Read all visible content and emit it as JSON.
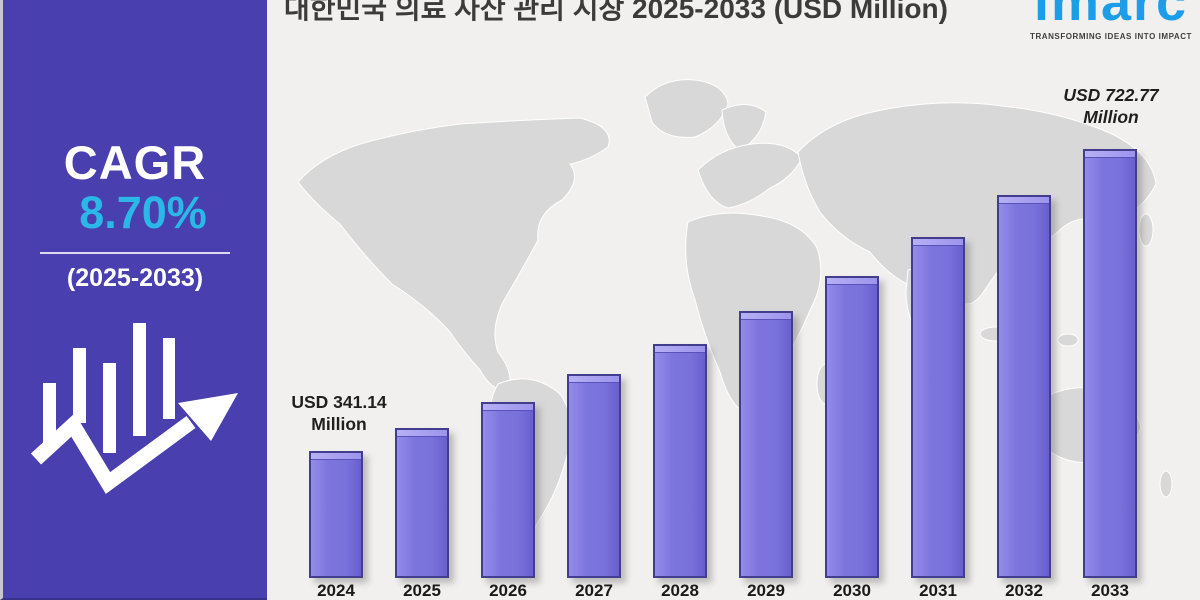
{
  "header": {
    "title": "대한민국 의료 자산 관리 시장 2025-2033 (USD Million)"
  },
  "logo": {
    "name": "imarc",
    "tagline": "TRANSFORMING IDEAS INTO IMPACT",
    "color": "#1B9DE9"
  },
  "sidebar": {
    "cagr_label": "CAGR",
    "cagr_value": "8.70%",
    "period": "(2025-2033)",
    "bg_color": "#4A3FAE",
    "accent_color": "#2BB7E8",
    "icon": "growth-chart-arrow-icon"
  },
  "chart_data": {
    "type": "bar",
    "title": "대한민국 의료 자산 관리 시장 2025-2033 (USD Million)",
    "unit": "USD Million",
    "categories": [
      "2024",
      "2025",
      "2026",
      "2027",
      "2028",
      "2029",
      "2030",
      "2031",
      "2032",
      "2033"
    ],
    "values": [
      341.14,
      370.82,
      403.08,
      438.15,
      476.27,
      517.7,
      562.74,
      611.7,
      664.92,
      722.77
    ],
    "values_note": "2024 and 2033 shown as data labels; intermediate values estimated from bar heights (≈8.70% CAGR)",
    "labeled_points": [
      {
        "category": "2024",
        "line1": "USD 341.14",
        "line2": "Million"
      },
      {
        "category": "2033",
        "line1": "USD 722.77",
        "line2": "Million"
      }
    ],
    "bar_color": "#7B73DC",
    "bar_edge_color": "#433D8D",
    "xlabel": "",
    "ylabel": "",
    "gridlines": false,
    "legend": false,
    "background": "gray world map silhouette",
    "baseline": "non-zero (bar heights not proportional from zero)"
  }
}
